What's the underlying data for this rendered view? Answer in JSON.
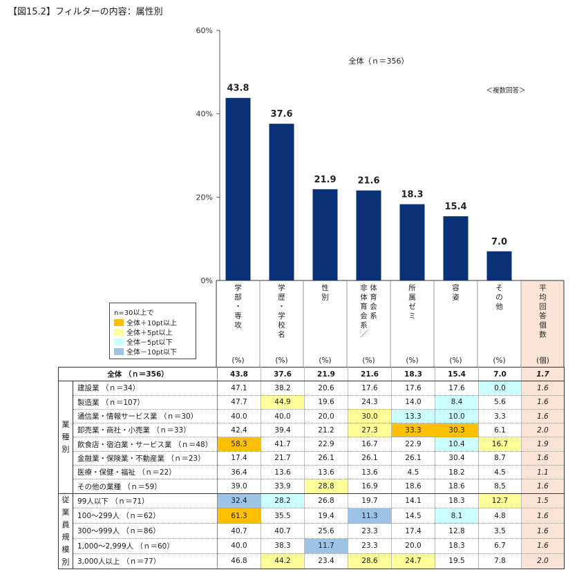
{
  "title": "【図15.2】フィルターの内容：属性別",
  "chart_data": {
    "type": "bar",
    "subtitle": "全体（ｎ＝356）",
    "note": "＜複数回答＞",
    "categories": [
      "学部・専攻",
      "学歴・学校名",
      "性別",
      "体育会系／非体育会系",
      "所属ゼミ",
      "容姿",
      "その他"
    ],
    "values": [
      43.8,
      37.6,
      21.9,
      21.6,
      18.3,
      15.4,
      7.0
    ],
    "value_labels": [
      "43.8",
      "37.6",
      "21.9",
      "21.6",
      "18.3",
      "15.4",
      "7.0"
    ],
    "ylim": [
      0,
      60
    ],
    "yticks": [
      "0%",
      "20%",
      "40%",
      "60%"
    ],
    "colors": {
      "bar": "#0a3178",
      "avg_column": "#fbe4d5"
    },
    "column_header_lines": [
      [
        "学",
        "部",
        "・",
        "専",
        "攻"
      ],
      [
        "学",
        "歴",
        "・",
        "学",
        "校",
        "名"
      ],
      [
        "性",
        "別"
      ],
      [
        "非体育会系／",
        "体育会系"
      ],
      [
        "所",
        "属",
        "ゼ",
        "ミ"
      ],
      [
        "容",
        "姿"
      ],
      [
        "そ",
        "の",
        "他"
      ],
      [
        "平",
        "均",
        "回",
        "答",
        "個",
        "数"
      ]
    ],
    "column_units": [
      "(%)",
      "(%)",
      "(%)",
      "(%)",
      "(%)",
      "(%)",
      "(%)",
      "(個)"
    ]
  },
  "legend": {
    "title": "n=30以上で",
    "items": [
      {
        "label": "全体＋10pt以上",
        "color": "#ffc000"
      },
      {
        "label": "全体＋5pt以上",
        "color": "#ffff99"
      },
      {
        "label": "全体－5pt以下",
        "color": "#ccffff"
      },
      {
        "label": "全体－10pt以下",
        "color": "#9cc3e6"
      }
    ]
  },
  "table": {
    "total": {
      "label": "全体 （ｎ＝356）",
      "values": [
        "43.8",
        "37.6",
        "21.9",
        "21.6",
        "18.3",
        "15.4",
        "7.0"
      ],
      "avg": "1.7"
    },
    "groups": [
      {
        "name_chars": [
          "業",
          "種",
          "別"
        ],
        "rows": [
          {
            "label": "建設業 （ｎ＝34）",
            "values": [
              "47.1",
              "38.2",
              "20.6",
              "17.6",
              "17.6",
              "17.6",
              "0.0"
            ],
            "avg": "1.6",
            "hl": [
              "",
              "",
              "",
              "",
              "",
              "",
              "c"
            ]
          },
          {
            "label": "製造業 （ｎ＝107）",
            "values": [
              "47.7",
              "44.9",
              "19.6",
              "24.3",
              "14.0",
              "8.4",
              "5.6"
            ],
            "avg": "1.6",
            "hl": [
              "",
              "y",
              "",
              "",
              "",
              "c",
              ""
            ]
          },
          {
            "label": "通信業・情報サービス業 （ｎ＝30）",
            "values": [
              "40.0",
              "40.0",
              "20.0",
              "30.0",
              "13.3",
              "10.0",
              "3.3"
            ],
            "avg": "1.6",
            "hl": [
              "",
              "",
              "",
              "y",
              "c",
              "c",
              ""
            ]
          },
          {
            "label": "卸売業・商社・小売業 （ｎ＝33）",
            "values": [
              "42.4",
              "39.4",
              "21.2",
              "27.3",
              "33.3",
              "30.3",
              "6.1"
            ],
            "avg": "2.0",
            "hl": [
              "",
              "",
              "",
              "y",
              "o",
              "o",
              ""
            ]
          },
          {
            "label": "飲食店・宿泊業・サービス業 （ｎ＝48）",
            "values": [
              "58.3",
              "41.7",
              "22.9",
              "16.7",
              "22.9",
              "10.4",
              "16.7"
            ],
            "avg": "1.9",
            "hl": [
              "o",
              "",
              "",
              "",
              "",
              "c",
              "y"
            ]
          },
          {
            "label": "金融業・保険業・不動産業 （ｎ＝23）",
            "values": [
              "17.4",
              "21.7",
              "26.1",
              "26.1",
              "26.1",
              "30.4",
              "8.7"
            ],
            "avg": "1.6",
            "hl": [
              "",
              "",
              "",
              "",
              "",
              "",
              ""
            ]
          },
          {
            "label": "医療・保健・福祉 （ｎ＝22）",
            "values": [
              "36.4",
              "13.6",
              "13.6",
              "13.6",
              "4.5",
              "18.2",
              "4.5"
            ],
            "avg": "1.1",
            "hl": [
              "",
              "",
              "",
              "",
              "",
              "",
              ""
            ]
          },
          {
            "label": "その他の業種 （ｎ＝59）",
            "values": [
              "39.0",
              "33.9",
              "28.8",
              "16.9",
              "18.6",
              "18.6",
              "8.5"
            ],
            "avg": "1.6",
            "hl": [
              "",
              "",
              "y",
              "",
              "",
              "",
              ""
            ]
          }
        ]
      },
      {
        "name_chars": [
          "従",
          "業",
          "員",
          "規",
          "模",
          "別"
        ],
        "rows": [
          {
            "label": "99人以下 （ｎ＝71）",
            "values": [
              "32.4",
              "28.2",
              "26.8",
              "19.7",
              "14.1",
              "18.3",
              "12.7"
            ],
            "avg": "1.5",
            "hl": [
              "b",
              "c",
              "",
              "",
              "",
              "",
              "y"
            ]
          },
          {
            "label": "100～299人 （ｎ＝62）",
            "values": [
              "61.3",
              "35.5",
              "19.4",
              "11.3",
              "14.5",
              "8.1",
              "4.8"
            ],
            "avg": "1.6",
            "hl": [
              "o",
              "",
              "",
              "b",
              "",
              "c",
              ""
            ]
          },
          {
            "label": "300～999人 （ｎ＝86）",
            "values": [
              "40.7",
              "40.7",
              "25.6",
              "23.3",
              "17.4",
              "12.8",
              "3.5"
            ],
            "avg": "1.6",
            "hl": [
              "",
              "",
              "",
              "",
              "",
              "",
              ""
            ]
          },
          {
            "label": "1,000～2,999人 （ｎ＝60）",
            "values": [
              "40.0",
              "38.3",
              "11.7",
              "23.3",
              "20.0",
              "18.3",
              "6.7"
            ],
            "avg": "1.6",
            "hl": [
              "",
              "",
              "b",
              "",
              "",
              "",
              ""
            ]
          },
          {
            "label": "3,000人以上 （ｎ＝77）",
            "values": [
              "46.8",
              "44.2",
              "23.4",
              "28.6",
              "24.7",
              "19.5",
              "7.8"
            ],
            "avg": "2.0",
            "hl": [
              "",
              "y",
              "",
              "y",
              "y",
              "",
              ""
            ]
          }
        ]
      }
    ]
  }
}
